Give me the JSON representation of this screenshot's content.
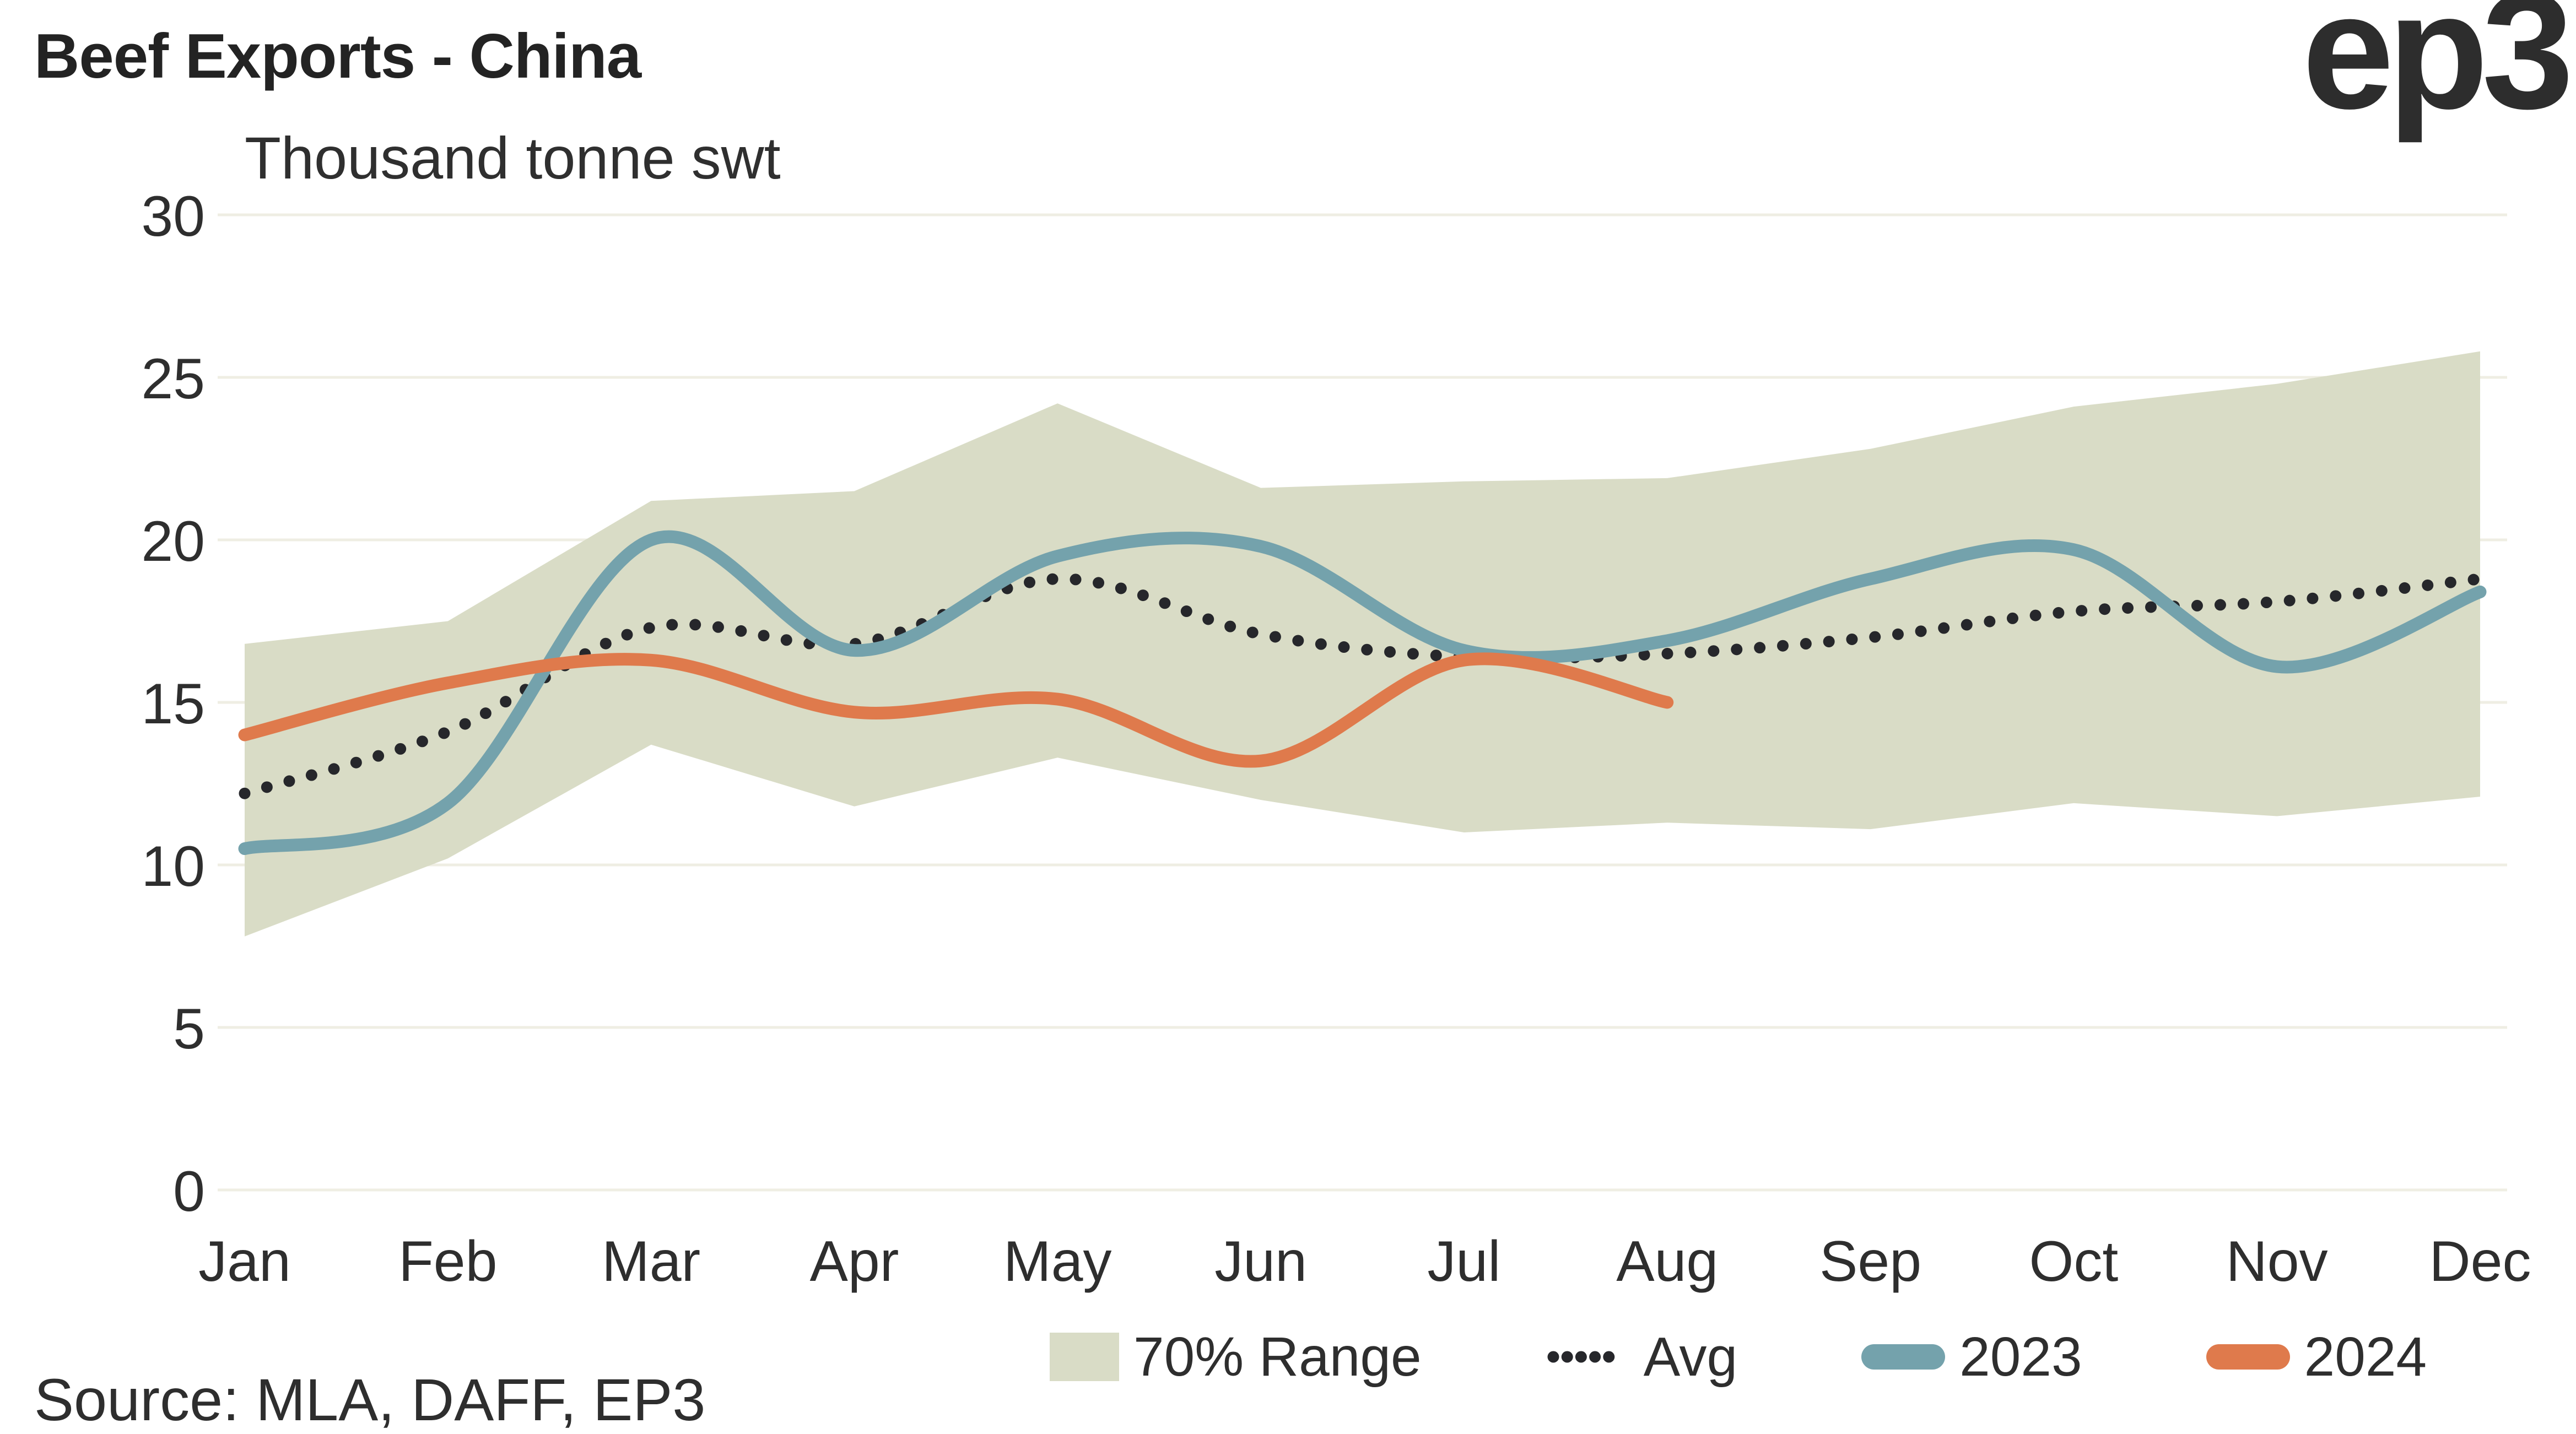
{
  "header": {
    "title": "Beef Exports - China",
    "subtitle": "Thousand tonne swt",
    "logo": "ep3"
  },
  "source": "Source: MLA, DAFF, EP3",
  "legend": {
    "items": [
      {
        "label": "70% Range",
        "type": "band"
      },
      {
        "label": "Avg",
        "type": "dotted"
      },
      {
        "label": "2023",
        "type": "line"
      },
      {
        "label": "2024",
        "type": "line"
      }
    ]
  },
  "colors": {
    "band": "#d9dcc6",
    "avg_dots": "#26272b",
    "line_2023": "#74a2ac",
    "line_2024": "#df7a4c",
    "gridline": "#efeee3",
    "axis_text": "#2e2e2e"
  },
  "chart_data": {
    "type": "line",
    "title": "Beef Exports - China",
    "ylabel": "Thousand tonne swt",
    "categories": [
      "Jan",
      "Feb",
      "Mar",
      "Apr",
      "May",
      "Jun",
      "Jul",
      "Aug",
      "Sep",
      "Oct",
      "Nov",
      "Dec"
    ],
    "ylim": [
      0,
      30
    ],
    "yticks": [
      0,
      5,
      10,
      15,
      20,
      25,
      30
    ],
    "grid": "horizontal",
    "legend_position": "bottom",
    "series": [
      {
        "name": "70% Range",
        "type": "band",
        "high": [
          16.8,
          17.5,
          21.2,
          21.5,
          24.2,
          21.6,
          21.8,
          21.9,
          22.8,
          24.1,
          24.8,
          25.8
        ],
        "low": [
          7.8,
          10.2,
          13.7,
          11.8,
          13.3,
          12.0,
          11.0,
          11.3,
          11.1,
          11.9,
          11.5,
          12.1
        ]
      },
      {
        "name": "Avg",
        "type": "dotted-line",
        "values": [
          12.2,
          14.1,
          17.3,
          16.8,
          18.8,
          17.1,
          16.4,
          16.5,
          17.0,
          17.8,
          18.1,
          18.8
        ]
      },
      {
        "name": "2023",
        "type": "line",
        "values": [
          10.5,
          11.9,
          20.0,
          16.6,
          19.5,
          19.8,
          16.6,
          16.9,
          18.8,
          19.7,
          16.1,
          18.4
        ]
      },
      {
        "name": "2024",
        "type": "line",
        "values": [
          14.0,
          15.6,
          16.3,
          14.7,
          15.1,
          13.2,
          16.3,
          15.0,
          null,
          null,
          null,
          null
        ]
      }
    ]
  }
}
